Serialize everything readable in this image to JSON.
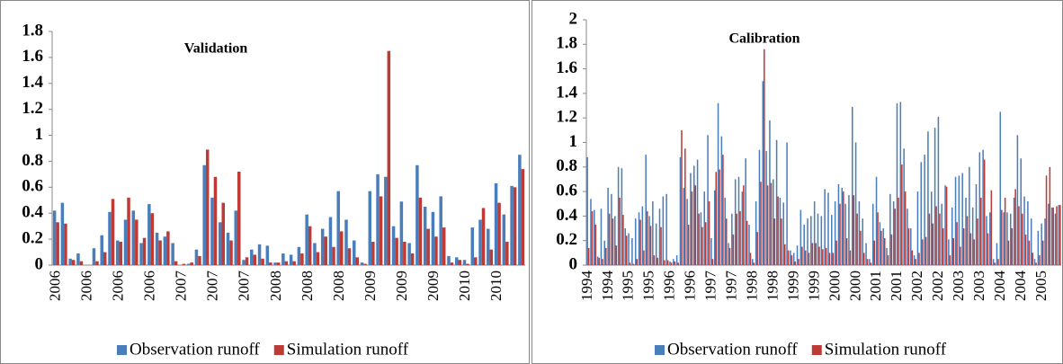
{
  "chart_data": [
    {
      "type": "bar",
      "title": "Validation",
      "categories": [
        "2006",
        null,
        null,
        null,
        "2006",
        null,
        null,
        null,
        "2006",
        null,
        null,
        null,
        "2006",
        null,
        null,
        null,
        "2007",
        null,
        null,
        null,
        "2007",
        null,
        null,
        null,
        "2007",
        null,
        null,
        null,
        "2008",
        null,
        null,
        null,
        "2008",
        null,
        null,
        null,
        "2008",
        null,
        null,
        null,
        "2009",
        null,
        null,
        null,
        "2009",
        null,
        null,
        null,
        "2009",
        null,
        null,
        null,
        "2010",
        null,
        null,
        null,
        "2010",
        null,
        null,
        null
      ],
      "series": [
        {
          "name": "Observation runoff",
          "color": "#4a7ebb",
          "values": [
            0.42,
            0.48,
            0.05,
            0.09,
            0.0,
            0.13,
            0.23,
            0.41,
            0.19,
            0.35,
            0.42,
            0.17,
            0.47,
            0.25,
            0.22,
            0.17,
            0.0,
            0.01,
            0.12,
            0.77,
            0.52,
            0.33,
            0.25,
            0.42,
            0.04,
            0.12,
            0.16,
            0.15,
            0.02,
            0.09,
            0.08,
            0.14,
            0.39,
            0.17,
            0.28,
            0.37,
            0.57,
            0.35,
            0.19,
            0.02,
            0.57,
            0.7,
            0.68,
            0.3,
            0.49,
            0.17,
            0.77,
            0.45,
            0.41,
            0.53,
            0.07,
            0.06,
            0.04,
            0.29,
            0.35,
            0.28,
            0.63,
            0.39,
            0.61,
            0.85
          ]
        },
        {
          "name": "Simulation runoff",
          "color": "#be3a35",
          "values": [
            0.33,
            0.32,
            0.04,
            0.03,
            0.0,
            0.03,
            0.1,
            0.51,
            0.18,
            0.52,
            0.35,
            0.21,
            0.4,
            0.19,
            0.26,
            0.03,
            0.01,
            0.02,
            0.07,
            0.89,
            0.68,
            0.48,
            0.19,
            0.72,
            0.06,
            0.08,
            0.05,
            0.02,
            0.02,
            0.03,
            0.03,
            0.09,
            0.3,
            0.1,
            0.22,
            0.14,
            0.26,
            0.13,
            0.06,
            0.01,
            0.18,
            0.53,
            1.65,
            0.21,
            0.18,
            0.09,
            0.52,
            0.28,
            0.22,
            0.29,
            0.02,
            0.04,
            0.01,
            0.06,
            0.44,
            0.12,
            0.48,
            0.18,
            0.6,
            0.74
          ]
        }
      ],
      "ylim": [
        0,
        1.8
      ],
      "yticks": [
        0,
        0.2,
        0.4,
        0.6,
        0.8,
        1,
        1.2,
        1.4,
        1.6,
        1.8
      ]
    },
    {
      "type": "bar",
      "title": "Calibration",
      "categories": [
        "1994",
        null,
        null,
        null,
        null,
        null,
        "1994",
        null,
        null,
        null,
        null,
        null,
        "1995",
        null,
        null,
        null,
        null,
        null,
        "1995",
        null,
        null,
        null,
        null,
        null,
        "1996",
        null,
        null,
        null,
        null,
        null,
        "1996",
        null,
        null,
        null,
        null,
        null,
        "1997",
        null,
        null,
        null,
        null,
        null,
        "1997",
        null,
        null,
        null,
        null,
        null,
        "1998",
        null,
        null,
        null,
        null,
        null,
        "1998",
        null,
        null,
        null,
        null,
        null,
        "1999",
        null,
        null,
        null,
        null,
        null,
        "1999",
        null,
        null,
        null,
        null,
        null,
        "2000",
        null,
        null,
        null,
        null,
        null,
        "2000",
        null,
        null,
        null,
        null,
        null,
        "2001",
        null,
        null,
        null,
        null,
        null,
        "2001",
        null,
        null,
        null,
        null,
        null,
        "2002",
        null,
        null,
        null,
        null,
        null,
        "2002",
        null,
        null,
        null,
        null,
        null,
        "2003",
        null,
        null,
        null,
        null,
        null,
        "2003",
        null,
        null,
        null,
        null,
        null,
        "2004",
        null,
        null,
        null,
        null,
        null,
        "2004",
        null,
        null,
        null,
        null,
        null,
        "2005",
        null,
        null,
        null,
        null,
        null
      ],
      "series": [
        {
          "name": "Observation runoff",
          "color": "#4a7ebb",
          "values": [
            0.88,
            0.54,
            0.45,
            0.07,
            0.46,
            0.2,
            0.63,
            0.58,
            0.4,
            0.8,
            0.79,
            0.3,
            0.26,
            0.22,
            0.38,
            0.43,
            0.48,
            0.9,
            0.4,
            0.52,
            0.34,
            0.46,
            0.56,
            0.58,
            0.03,
            0.05,
            0.08,
            0.88,
            0.63,
            0.54,
            0.75,
            0.81,
            0.86,
            0.43,
            0.6,
            1.06,
            0.22,
            0.61,
            1.32,
            1.05,
            0.55,
            0.18,
            0.42,
            0.7,
            0.72,
            0.6,
            0.87,
            0.33,
            0.05,
            0.52,
            0.94,
            1.5,
            0.93,
            1.18,
            0.7,
            1.02,
            0.55,
            0.51,
            1.0,
            0.12,
            0.1,
            0.16,
            0.45,
            0.33,
            0.38,
            0.4,
            0.52,
            0.42,
            0.4,
            0.62,
            0.59,
            0.41,
            0.52,
            0.66,
            0.63,
            0.5,
            0.57,
            1.29,
            1.0,
            0.52,
            0.38,
            0.18,
            0.05,
            0.5,
            0.72,
            0.35,
            0.3,
            0.14,
            0.58,
            0.52,
            1.32,
            1.33,
            0.95,
            0.46,
            0.3,
            0.08,
            0.6,
            0.84,
            0.9,
            1.09,
            0.6,
            1.12,
            1.21,
            0.5,
            0.65,
            0.21,
            0.47,
            0.72,
            0.73,
            0.75,
            0.55,
            0.8,
            0.47,
            0.66,
            0.92,
            0.94,
            0.4,
            0.43,
            0.05,
            0.18,
            1.25,
            0.43,
            0.43,
            0.42,
            0.55,
            1.06,
            0.87,
            0.56,
            0.52,
            0.38,
            0.05,
            0.28,
            0.34,
            0.38,
            0.5,
            0.47,
            0.42,
            0.49
          ]
        },
        {
          "name": "Simulation runoff",
          "color": "#be3a35",
          "values": [
            0.14,
            0.44,
            0.33,
            0.06,
            0.05,
            0.14,
            0.42,
            0.38,
            0.16,
            0.55,
            0.41,
            0.24,
            0.02,
            0.01,
            0.05,
            0.37,
            0.12,
            0.44,
            0.32,
            0.08,
            0.06,
            0.31,
            0.04,
            0.04,
            0.02,
            0.03,
            0.02,
            1.1,
            0.95,
            0.33,
            0.6,
            0.65,
            0.42,
            0.31,
            0.35,
            0.52,
            0.05,
            0.76,
            0.78,
            0.9,
            0.38,
            0.14,
            0.25,
            0.42,
            0.44,
            0.65,
            0.36,
            0.1,
            0.02,
            0.27,
            0.68,
            1.76,
            0.65,
            0.67,
            0.38,
            0.56,
            0.38,
            0.17,
            0.12,
            0.08,
            0.03,
            0.05,
            0.15,
            0.12,
            0.1,
            0.18,
            0.18,
            0.15,
            0.13,
            0.14,
            0.1,
            0.1,
            0.2,
            0.5,
            0.6,
            0.22,
            0.12,
            0.57,
            0.42,
            0.28,
            0.1,
            0.05,
            0.02,
            0.2,
            0.43,
            0.28,
            0.22,
            0.08,
            0.25,
            0.46,
            0.55,
            0.82,
            0.6,
            0.3,
            0.12,
            0.05,
            0.1,
            0.21,
            0.23,
            0.42,
            0.34,
            0.48,
            0.42,
            0.3,
            0.64,
            0.08,
            0.22,
            0.35,
            0.15,
            0.3,
            0.4,
            0.26,
            0.21,
            0.38,
            0.55,
            0.86,
            0.26,
            0.61,
            0.02,
            0.05,
            0.45,
            0.55,
            0.2,
            0.3,
            0.62,
            0.48,
            0.42,
            0.25,
            0.2,
            0.1,
            0.02,
            0.08,
            0.2,
            0.73,
            0.8,
            0.47,
            0.48,
            0.49
          ]
        }
      ],
      "ylim": [
        0,
        2
      ],
      "yticks": [
        0,
        0.2,
        0.4,
        0.6,
        0.8,
        1,
        1.2,
        1.4,
        1.6,
        1.8,
        2
      ]
    }
  ]
}
